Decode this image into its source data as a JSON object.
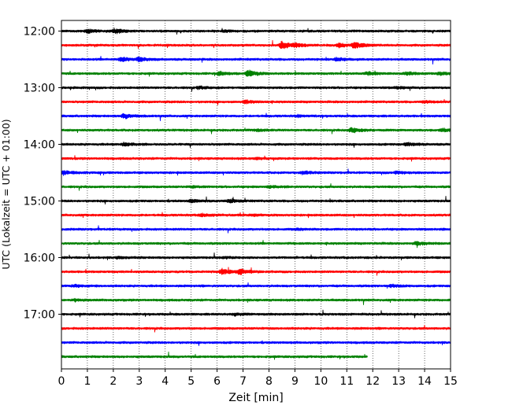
{
  "chart_data": {
    "type": "line",
    "title": "",
    "xlabel": "Zeit  [min]",
    "ylabel": "UTC (Lokalzeit = UTC + 01:00)",
    "xlim": [
      0,
      15
    ],
    "x_ticks": [
      "0",
      "1",
      "2",
      "3",
      "4",
      "5",
      "6",
      "7",
      "8",
      "9",
      "10",
      "11",
      "12",
      "13",
      "14",
      "15"
    ],
    "y_ticks": [
      "12:00",
      "13:00",
      "14:00",
      "15:00",
      "16:00",
      "17:00"
    ],
    "grid": "vertical dotted at each minute",
    "trace_interval_minutes": 15,
    "trace_colors": [
      "#000000",
      "#ff0000",
      "#0000ff",
      "#008000"
    ],
    "last_trace_end_minute": 11.8,
    "traces": [
      {
        "start": "12:00",
        "color": "#000000",
        "events": [
          [
            1.0,
            2.5
          ],
          [
            2.05,
            3.5
          ],
          [
            6.3,
            1.0
          ]
        ]
      },
      {
        "start": "12:15",
        "color": "#ff0000",
        "events": [
          [
            8.5,
            5.5
          ],
          [
            9.0,
            2.5
          ],
          [
            10.7,
            3.0
          ],
          [
            11.3,
            5.0
          ]
        ]
      },
      {
        "start": "12:30",
        "color": "#0000ff",
        "events": [
          [
            2.3,
            3.5
          ],
          [
            3.0,
            3.0
          ],
          [
            10.6,
            2.0
          ]
        ]
      },
      {
        "start": "12:45",
        "color": "#008000",
        "events": [
          [
            6.1,
            2.5
          ],
          [
            7.2,
            5.5
          ],
          [
            11.8,
            2.5
          ],
          [
            13.3,
            2.0
          ],
          [
            14.6,
            2.0
          ]
        ]
      },
      {
        "start": "13:00",
        "color": "#000000",
        "events": [
          [
            5.3,
            1.5
          ],
          [
            12.9,
            1.2
          ]
        ]
      },
      {
        "start": "13:15",
        "color": "#ff0000",
        "events": [
          [
            7.1,
            2.0
          ],
          [
            14.0,
            1.5
          ]
        ]
      },
      {
        "start": "13:30",
        "color": "#0000ff",
        "events": [
          [
            2.4,
            3.5
          ],
          [
            9.1,
            1.0
          ]
        ]
      },
      {
        "start": "13:45",
        "color": "#008000",
        "events": [
          [
            7.5,
            1.5
          ],
          [
            11.2,
            3.5
          ],
          [
            14.7,
            2.0
          ]
        ]
      },
      {
        "start": "14:00",
        "color": "#000000",
        "events": [
          [
            2.4,
            2.5
          ],
          [
            13.3,
            2.5
          ]
        ]
      },
      {
        "start": "14:15",
        "color": "#ff0000",
        "events": [
          [
            7.5,
            1.0
          ]
        ]
      },
      {
        "start": "14:30",
        "color": "#0000ff",
        "events": [
          [
            0.1,
            3.0
          ],
          [
            9.3,
            2.0
          ],
          [
            12.9,
            1.5
          ]
        ]
      },
      {
        "start": "14:45",
        "color": "#008000",
        "events": [
          [
            5.0,
            1.0
          ],
          [
            8.0,
            1.5
          ]
        ]
      },
      {
        "start": "15:00",
        "color": "#000000",
        "events": [
          [
            5.0,
            2.0
          ],
          [
            6.5,
            2.5
          ]
        ]
      },
      {
        "start": "15:15",
        "color": "#ff0000",
        "events": [
          [
            5.4,
            2.0
          ],
          [
            7.4,
            1.0
          ]
        ]
      },
      {
        "start": "15:30",
        "color": "#0000ff",
        "events": [
          [
            9.1,
            1.0
          ]
        ]
      },
      {
        "start": "15:45",
        "color": "#008000",
        "events": [
          [
            13.7,
            2.5
          ]
        ]
      },
      {
        "start": "16:00",
        "color": "#000000",
        "events": [
          [
            2.2,
            1.5
          ],
          [
            6.3,
            1.0
          ]
        ]
      },
      {
        "start": "16:15",
        "color": "#ff0000",
        "events": [
          [
            6.2,
            4.5
          ],
          [
            6.9,
            3.5
          ]
        ]
      },
      {
        "start": "16:30",
        "color": "#0000ff",
        "events": [
          [
            0.5,
            1.5
          ],
          [
            12.7,
            2.0
          ]
        ]
      },
      {
        "start": "16:45",
        "color": "#008000",
        "events": [
          [
            0.5,
            1.0
          ]
        ]
      },
      {
        "start": "17:00",
        "color": "#000000",
        "events": [
          [
            6.7,
            1.5
          ]
        ]
      },
      {
        "start": "17:15",
        "color": "#ff0000",
        "events": []
      },
      {
        "start": "17:30",
        "color": "#0000ff",
        "events": []
      },
      {
        "start": "17:45",
        "color": "#008000",
        "events": []
      }
    ]
  }
}
